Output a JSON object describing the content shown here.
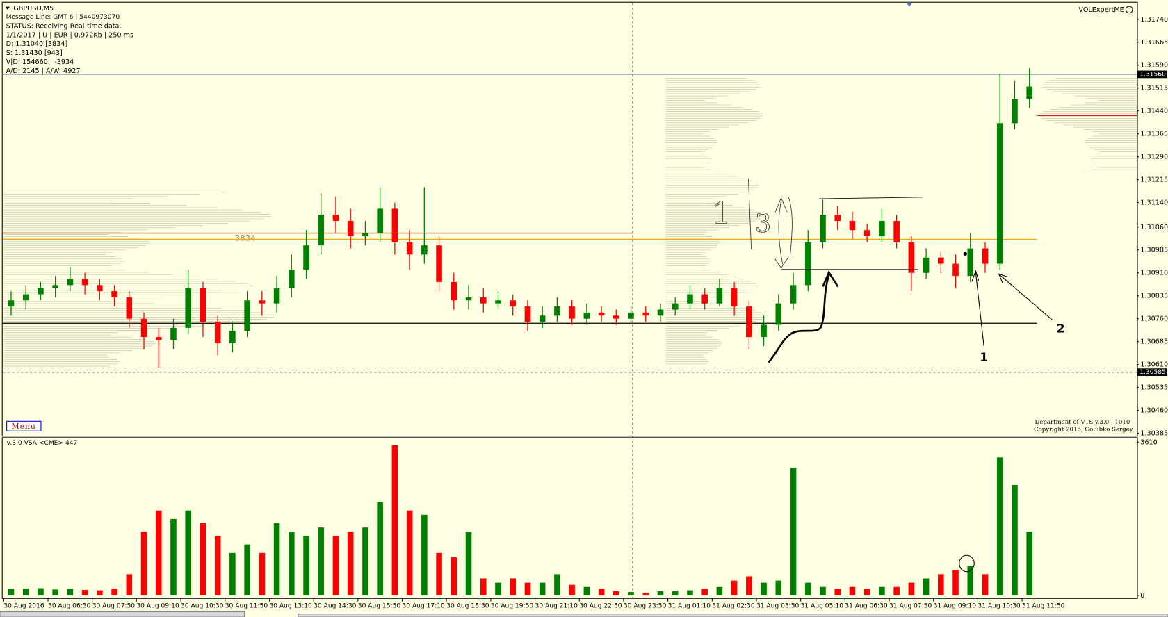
{
  "terminal": {
    "header": [
      "GBPUSD,M5",
      "Message Line: GMT 6 | 5440973070",
      "STATUS:  Receiving Real-time data.",
      "1/1/2017 | U | EUR | 0.972Kb | 250 ms",
      "D: 1.31040  [3834]",
      "S: 1.31430  [943]",
      "V|D: 154660 | -3934",
      "A/D: 2145 | A/W: 4927"
    ],
    "brand": "VOLExpertME",
    "menu": "Menu",
    "footer": [
      "Department of VTS  v.3.0 | 1010",
      "Copyright 2015, Golubko Sergey"
    ],
    "handwritten": [
      "1",
      "3"
    ],
    "annotations": [
      "1",
      "2"
    ]
  },
  "chart_data": [
    {
      "type": "candlestick",
      "categories": [
        "30 Aug 2016",
        null,
        null,
        "30 Aug 06:30",
        null,
        null,
        "30 Aug 07:50",
        null,
        null,
        "30 Aug 09:10",
        null,
        null,
        "30 Aug 10:30",
        null,
        null,
        "30 Aug 11:50",
        null,
        null,
        "30 Aug 13:10",
        null,
        null,
        "30 Aug 14:30",
        null,
        null,
        "30 Aug 15:50",
        null,
        null,
        "30 Aug 17:10",
        null,
        null,
        "30 Aug 18:30",
        null,
        null,
        "30 Aug 19:50",
        null,
        null,
        "30 Aug 21:10",
        null,
        null,
        "30 Aug 22:30",
        null,
        null,
        "30 Aug 23:50",
        null,
        null,
        "31 Aug 01:10",
        null,
        null,
        "31 Aug 02:30",
        null,
        null,
        "31 Aug 03:50",
        null,
        null,
        "31 Aug 05:10",
        null,
        null,
        "31 Aug 06:30",
        null,
        null,
        "31 Aug 07:50",
        null,
        null,
        "31 Aug 09:10",
        null,
        null,
        "31 Aug 10:30",
        null,
        null,
        "31 Aug 11:50"
      ],
      "open": [
        1.308,
        1.3082,
        1.3084,
        1.3086,
        1.3087,
        1.3089,
        1.3087,
        1.3085,
        1.3083,
        1.3076,
        1.307,
        1.3069,
        1.3073,
        1.3086,
        1.3075,
        1.3068,
        1.3072,
        1.3082,
        1.3081,
        1.3086,
        1.3092,
        1.31,
        1.311,
        1.3108,
        1.3103,
        1.3104,
        1.3112,
        1.3101,
        1.3097,
        1.31,
        1.3088,
        1.3082,
        1.3083,
        1.3081,
        1.3082,
        1.308,
        1.3075,
        1.3077,
        1.308,
        1.3076,
        1.3078,
        1.3077,
        1.3076,
        1.3078,
        1.3077,
        1.3079,
        1.3081,
        1.3084,
        1.3081,
        1.3086,
        1.308,
        1.307,
        1.3074,
        1.3081,
        1.3087,
        1.3101,
        1.311,
        1.3108,
        1.3105,
        1.3103,
        1.3108,
        1.3101,
        1.3091,
        1.3096,
        1.3094,
        1.309,
        1.3099,
        1.3094,
        1.314,
        1.3148
      ],
      "high": [
        1.3085,
        1.3087,
        1.3088,
        1.309,
        1.3093,
        1.3091,
        1.3089,
        1.3087,
        1.3085,
        1.3078,
        1.3073,
        1.3076,
        1.3092,
        1.3088,
        1.3077,
        1.3075,
        1.3085,
        1.3085,
        1.309,
        1.3097,
        1.3105,
        1.3117,
        1.3116,
        1.3112,
        1.3108,
        1.3119,
        1.3114,
        1.3105,
        1.3119,
        1.3103,
        1.3091,
        1.3087,
        1.3086,
        1.3085,
        1.3084,
        1.3082,
        1.308,
        1.3083,
        1.3082,
        1.3081,
        1.308,
        1.3079,
        1.308,
        1.308,
        1.3081,
        1.3083,
        1.3087,
        1.3086,
        1.3089,
        1.3088,
        1.3082,
        1.3077,
        1.3084,
        1.3091,
        1.3105,
        1.3115,
        1.3113,
        1.3111,
        1.3107,
        1.3112,
        1.311,
        1.3103,
        1.3099,
        1.3098,
        1.3097,
        1.3104,
        1.3101,
        1.3156,
        1.3154,
        1.3158
      ],
      "low": [
        1.3077,
        1.3079,
        1.3082,
        1.3083,
        1.3085,
        1.3084,
        1.3082,
        1.308,
        1.3073,
        1.3066,
        1.306,
        1.3066,
        1.3071,
        1.307,
        1.3064,
        1.3065,
        1.307,
        1.3077,
        1.3078,
        1.3083,
        1.3089,
        1.3097,
        1.3104,
        1.3099,
        1.31,
        1.3101,
        1.3097,
        1.3092,
        1.3094,
        1.3085,
        1.3079,
        1.3079,
        1.3078,
        1.3079,
        1.3077,
        1.3072,
        1.3073,
        1.3075,
        1.3074,
        1.3074,
        1.3075,
        1.3074,
        1.3075,
        1.3075,
        1.3075,
        1.3077,
        1.3079,
        1.3079,
        1.308,
        1.3077,
        1.3066,
        1.3067,
        1.3072,
        1.3079,
        1.3085,
        1.3099,
        1.3105,
        1.3102,
        1.3101,
        1.3101,
        1.3099,
        1.3085,
        1.3089,
        1.3091,
        1.3086,
        1.3088,
        1.3091,
        1.3092,
        1.3138,
        1.3145
      ],
      "close": [
        1.3082,
        1.3084,
        1.3086,
        1.3087,
        1.3089,
        1.3087,
        1.3085,
        1.3083,
        1.3076,
        1.307,
        1.3069,
        1.3073,
        1.3086,
        1.3075,
        1.3068,
        1.3072,
        1.3082,
        1.3081,
        1.3086,
        1.3092,
        1.31,
        1.311,
        1.3108,
        1.3103,
        1.3104,
        1.3112,
        1.3101,
        1.3097,
        1.31,
        1.3088,
        1.3082,
        1.3083,
        1.3081,
        1.3082,
        1.308,
        1.3075,
        1.3077,
        1.308,
        1.3076,
        1.3078,
        1.3077,
        1.3076,
        1.3078,
        1.3077,
        1.3079,
        1.3081,
        1.3084,
        1.3081,
        1.3086,
        1.308,
        1.307,
        1.3074,
        1.3081,
        1.3087,
        1.3101,
        1.311,
        1.3108,
        1.3105,
        1.3103,
        1.3108,
        1.3101,
        1.3091,
        1.3096,
        1.3094,
        1.309,
        1.3099,
        1.3094,
        1.314,
        1.3148,
        1.3152
      ],
      "up_color": "#008000",
      "down_color": "#ff0000",
      "ylim": [
        1.30378,
        1.31791
      ],
      "yticks": [
        {
          "value": 1.3174,
          "label": "1.31740"
        },
        1.31665,
        {
          "value": 1.3159,
          "label": "1.31590"
        },
        1.31515,
        {
          "value": 1.3144,
          "label": "1.31440"
        },
        1.31365,
        {
          "value": 1.3129,
          "label": "1.31290"
        },
        1.31215,
        {
          "value": 1.3114,
          "label": "1.31140"
        },
        {
          "value": 1.3106,
          "label": "1.31060"
        },
        1.30985,
        {
          "value": 1.3091,
          "label": "1.30910"
        },
        1.30835,
        {
          "value": 1.3076,
          "label": "1.30760"
        },
        1.30685,
        {
          "value": 1.3061,
          "label": "1.30610"
        },
        1.30535,
        {
          "value": 1.3046,
          "label": "1.30460"
        },
        1.30385
      ],
      "levels": [
        {
          "value": 1.3156,
          "label": "1.31560",
          "color": "#7d8fa3",
          "span": "full"
        },
        {
          "value": 1.30585,
          "label": "1.30585",
          "color": "#000000",
          "span": "full",
          "dashed": true
        },
        {
          "value": 1.3104,
          "color": "#a0522d",
          "span": "left",
          "note": "3834"
        },
        {
          "value": 1.3102,
          "color": "#ffa500",
          "span": "candles"
        },
        {
          "value": 1.30745,
          "color": "#000000",
          "span": "candles"
        },
        {
          "value": 1.31425,
          "color": "#cc0000",
          "span": "right"
        }
      ]
    },
    {
      "type": "bar",
      "title": "v.3.0 VSA <CME> 447",
      "values": [
        150,
        160,
        170,
        140,
        150,
        130,
        120,
        160,
        500,
        1500,
        2000,
        1800,
        2000,
        1700,
        1400,
        1000,
        1200,
        1000,
        1700,
        1500,
        1400,
        1600,
        1400,
        1500,
        1600,
        2200,
        3540,
        2000,
        1900,
        1000,
        900,
        1500,
        400,
        300,
        400,
        300,
        300,
        500,
        250,
        200,
        150,
        100,
        80,
        60,
        100,
        100,
        120,
        150,
        200,
        350,
        450,
        300,
        350,
        3010,
        300,
        200,
        150,
        200,
        150,
        200,
        200,
        300,
        400,
        500,
        600,
        700,
        500,
        3250,
        2600,
        1500
      ],
      "ylim": [
        0,
        3610
      ],
      "yticks": [
        0,
        3610
      ]
    }
  ]
}
